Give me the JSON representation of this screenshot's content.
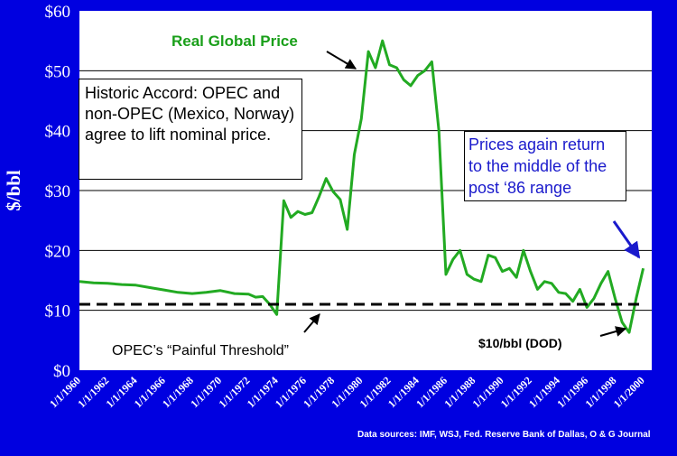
{
  "chart_data": {
    "type": "line",
    "title": "",
    "xlabel": "",
    "ylabel": "$/bbl",
    "ylim": [
      0,
      60
    ],
    "y_tick_labels": [
      "$0",
      "$10",
      "$20",
      "$30",
      "$40",
      "$50",
      "$60"
    ],
    "x_tick_labels": [
      "1/1/1960",
      "1/1/1962",
      "1/1/1964",
      "1/1/1966",
      "1/1/1968",
      "1/1/1970",
      "1/1/1972",
      "1/1/1974",
      "1/1/1976",
      "1/1/1978",
      "1/1/1980",
      "1/1/1982",
      "1/1/1984",
      "1/1/1986",
      "1/1/1988",
      "1/1/1990",
      "1/1/1992",
      "1/1/1994",
      "1/1/1996",
      "1/1/1998",
      "1/1/2000"
    ],
    "grid": true,
    "series": [
      {
        "name": "Real Global Price",
        "color": "#22aa22",
        "x": [
          1960,
          1961,
          1962,
          1963,
          1964,
          1965,
          1966,
          1967,
          1968,
          1969,
          1970,
          1971,
          1972,
          1972.5,
          1973,
          1973.5,
          1974,
          1974.5,
          1975,
          1975.5,
          1976,
          1976.5,
          1977,
          1977.5,
          1978,
          1978.5,
          1979,
          1979.5,
          1980,
          1980.5,
          1981,
          1981.5,
          1982,
          1982.5,
          1983,
          1983.5,
          1984,
          1984.5,
          1985,
          1985.5,
          1986,
          1986.5,
          1987,
          1987.5,
          1988,
          1988.5,
          1989,
          1989.5,
          1990,
          1990.5,
          1991,
          1991.5,
          1992,
          1992.5,
          1993,
          1993.5,
          1994,
          1994.5,
          1995,
          1995.5,
          1996,
          1996.5,
          1997,
          1997.5,
          1998,
          1998.5,
          1999,
          1999.5,
          2000
        ],
        "values": [
          14.8,
          14.6,
          14.5,
          14.3,
          14.2,
          13.8,
          13.4,
          13.0,
          12.8,
          13.0,
          13.3,
          12.8,
          12.7,
          12.2,
          12.3,
          11.0,
          9.3,
          28.3,
          25.5,
          26.5,
          26.0,
          26.3,
          29.0,
          32.0,
          29.8,
          28.5,
          23.5,
          36.0,
          42.0,
          53.2,
          50.5,
          55.0,
          51.0,
          50.5,
          48.5,
          47.5,
          49.2,
          50.0,
          51.5,
          40.0,
          16.0,
          18.5,
          20.0,
          16.0,
          15.2,
          14.8,
          19.2,
          18.8,
          16.5,
          17.0,
          15.5,
          20.0,
          16.5,
          13.5,
          14.8,
          14.5,
          13.0,
          12.8,
          11.5,
          13.5,
          10.5,
          12.0,
          14.5,
          16.5,
          12.0,
          8.0,
          6.3,
          12.0,
          17.0
        ]
      },
      {
        "name": "OPEC’s “Painful Threshold”",
        "color": "#000000",
        "dashed": true,
        "x": [
          1960,
          2000
        ],
        "values": [
          11,
          11
        ]
      }
    ],
    "annotations": {
      "series_label": "Real Global Price",
      "accord": "Historic Accord: OPEC and non-OPEC (Mexico, Norway) agree to lift nominal price.",
      "prices_again": "Prices again return to the middle of the post ‘86 range",
      "threshold": "OPEC’s “Painful Threshold”",
      "dod": "$10/bbl (DOD)"
    },
    "source": "Data sources: IMF, WSJ, Fed. Reserve Bank of Dallas, O & G Journal"
  }
}
